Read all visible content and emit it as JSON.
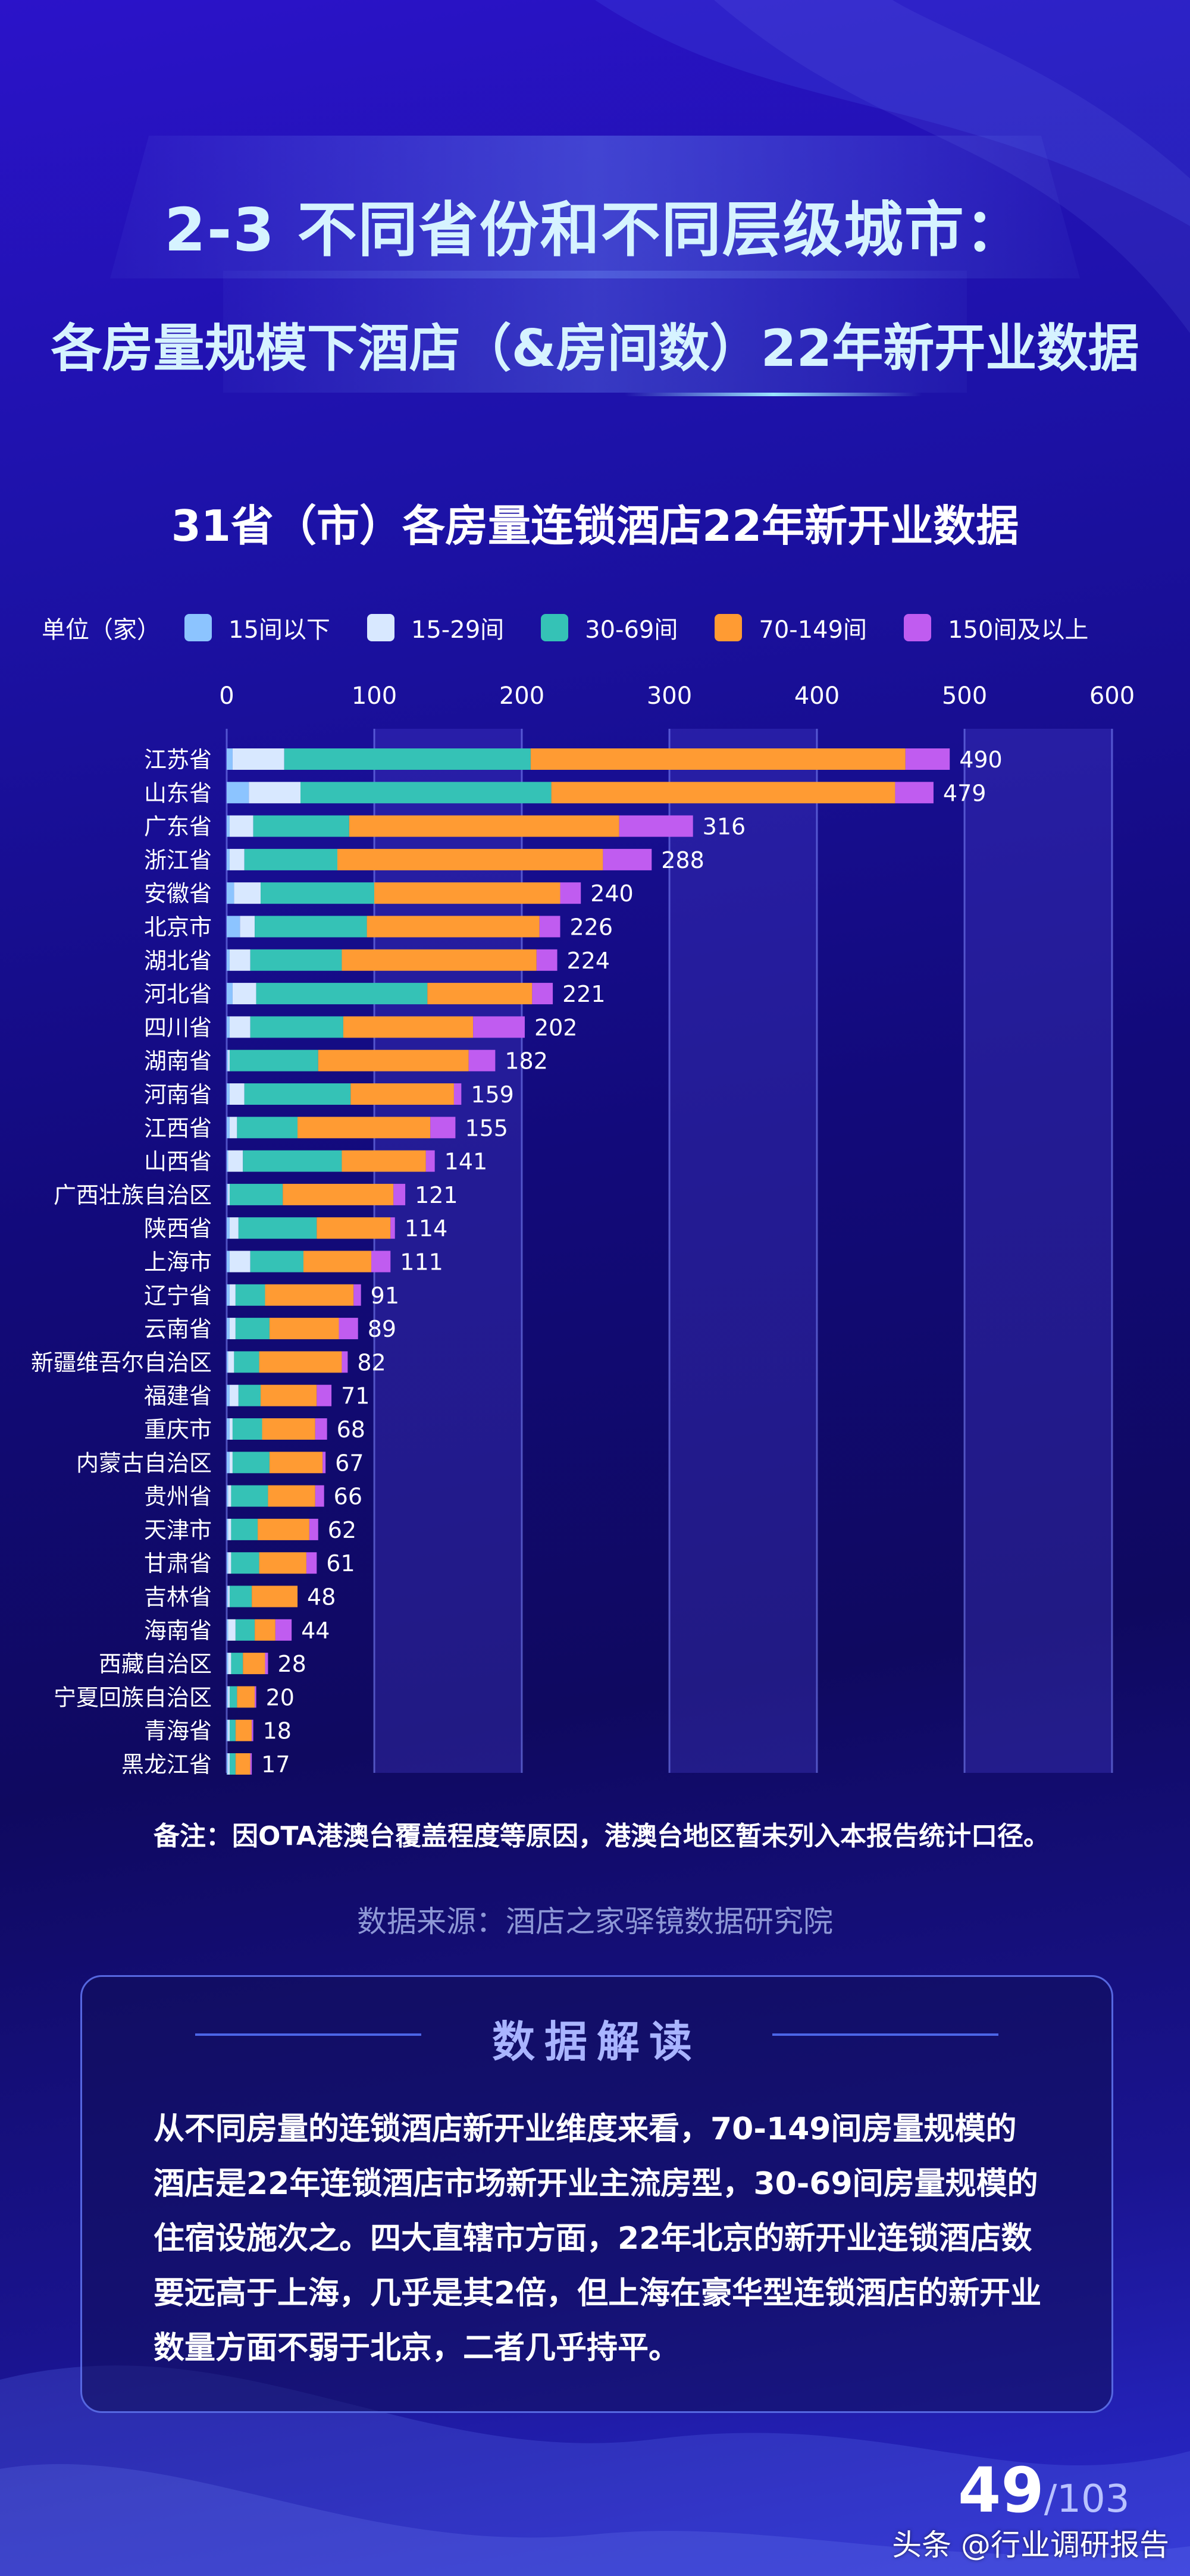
{
  "header": {
    "title_line1": "2-3 不同省份和不同层级城市：",
    "title_line2": "各房量规模下酒店（&房间数）22年新开业数据"
  },
  "chart_data": {
    "type": "bar",
    "orientation": "horizontal",
    "stacked": true,
    "title": "31省（市）各房量连锁酒店22年新开业数据",
    "unit_label": "单位（家）",
    "xlim": [
      0,
      600
    ],
    "xticks": [
      0,
      100,
      200,
      300,
      400,
      500,
      600
    ],
    "legend_position": "top",
    "categories": [
      "江苏省",
      "山东省",
      "广东省",
      "浙江省",
      "安徽省",
      "北京市",
      "湖北省",
      "河北省",
      "四川省",
      "湖南省",
      "河南省",
      "江西省",
      "山西省",
      "广西壮族自治区",
      "陕西省",
      "上海市",
      "辽宁省",
      "云南省",
      "新疆维吾尔自治区",
      "福建省",
      "重庆市",
      "内蒙古自治区",
      "贵州省",
      "天津市",
      "甘肃省",
      "吉林省",
      "海南省",
      "西藏自治区",
      "宁夏回族自治区",
      "青海省",
      "黑龙江省"
    ],
    "totals": [
      490,
      479,
      316,
      288,
      240,
      226,
      224,
      221,
      202,
      182,
      159,
      155,
      141,
      121,
      114,
      111,
      91,
      89,
      82,
      71,
      68,
      67,
      66,
      62,
      61,
      48,
      44,
      28,
      20,
      18,
      17
    ],
    "series": [
      {
        "name": "15间以下",
        "color": "#8cc4ff",
        "values": [
          4,
          15,
          2,
          2,
          5,
          9,
          2,
          4,
          2,
          1,
          2,
          2,
          1,
          1,
          2,
          2,
          2,
          2,
          1,
          2,
          2,
          2,
          1,
          1,
          1,
          1,
          1,
          1,
          1,
          1,
          1
        ]
      },
      {
        "name": "15-29间",
        "color": "#d8e8ff",
        "values": [
          35,
          35,
          16,
          10,
          18,
          10,
          14,
          16,
          14,
          1,
          10,
          5,
          10,
          1,
          6,
          14,
          4,
          4,
          4,
          6,
          2,
          2,
          2,
          2,
          2,
          1,
          5,
          2,
          1,
          1,
          1
        ]
      },
      {
        "name": "30-69间",
        "color": "#35c2b6",
        "values": [
          167,
          170,
          65,
          63,
          77,
          76,
          62,
          116,
          63,
          60,
          72,
          41,
          67,
          36,
          53,
          36,
          20,
          23,
          17,
          15,
          20,
          25,
          25,
          18,
          19,
          15,
          13,
          8,
          5,
          4,
          4
        ]
      },
      {
        "name": "70-149间",
        "color": "#ff9b33",
        "values": [
          254,
          233,
          183,
          180,
          126,
          117,
          132,
          71,
          88,
          102,
          70,
          90,
          57,
          75,
          50,
          46,
          60,
          47,
          56,
          38,
          36,
          36,
          32,
          35,
          32,
          31,
          14,
          15,
          12,
          11,
          10
        ]
      },
      {
        "name": "150间及以上",
        "color": "#c05cf0",
        "values": [
          30,
          26,
          50,
          33,
          14,
          14,
          14,
          14,
          35,
          18,
          5,
          17,
          6,
          8,
          3,
          13,
          5,
          13,
          4,
          10,
          8,
          2,
          6,
          6,
          7,
          0,
          11,
          2,
          1,
          1,
          1
        ]
      }
    ]
  },
  "note": "备注：因OTA港澳台覆盖程度等原因，港澳台地区暂未列入本报告统计口径。",
  "source": "数据来源：酒店之家驿镜数据研究院",
  "insight": {
    "title": "数据解读",
    "body": "从不同房量的连锁酒店新开业维度来看，70-149间房量规模的酒店是22年连锁酒店市场新开业主流房型，30-69间房量规模的住宿设施次之。四大直辖市方面，22年北京的新开业连锁酒店数要远高于上海，几乎是其2倍，但上海在豪华型连锁酒店的新开业数量方面不弱于北京，二者几乎持平。"
  },
  "footer": {
    "page": "49",
    "total": "/103",
    "watermark": "头条 @行业调研报告"
  }
}
